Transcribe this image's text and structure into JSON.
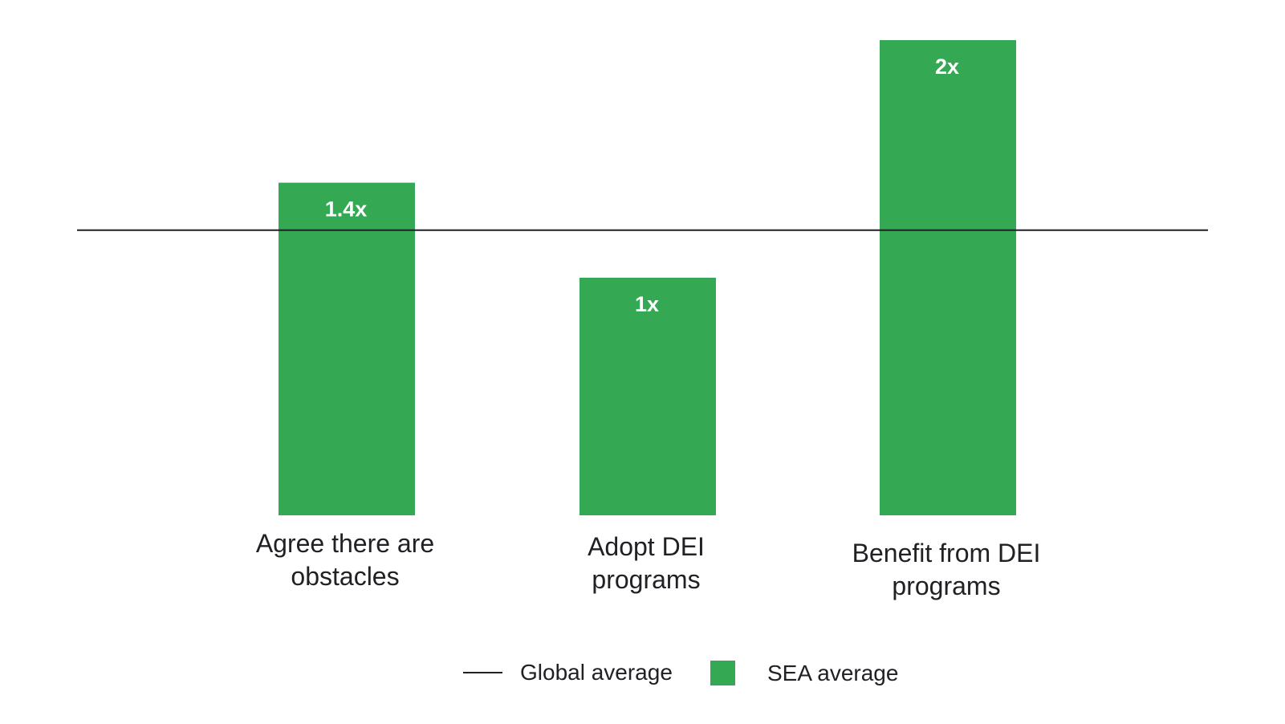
{
  "chart_data": {
    "type": "bar",
    "title": "",
    "xlabel": "",
    "ylabel": "",
    "categories": [
      [
        "Agree there are",
        "obstacles"
      ],
      [
        "Adopt DEI",
        "programs"
      ],
      [
        "Benefit from DEI",
        "programs"
      ]
    ],
    "series": [
      {
        "name": "SEA average",
        "values": [
          1.4,
          1,
          2
        ],
        "data_labels": [
          "1.4x",
          "1x",
          "2x"
        ]
      }
    ],
    "reference_lines": [
      {
        "name": "Global average",
        "value": 1.2
      }
    ],
    "legend_position": "bottom-center",
    "grid": false,
    "colors": {
      "bar": "#34a853",
      "reference_line": "#202124",
      "text": "#202124"
    }
  }
}
